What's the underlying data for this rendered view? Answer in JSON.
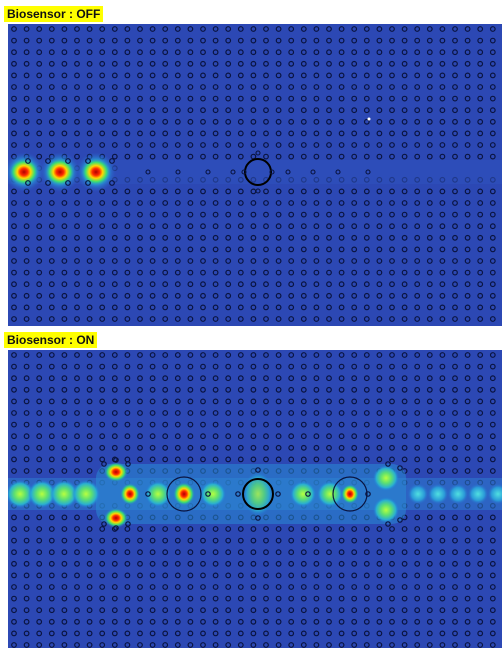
{
  "panels": [
    {
      "label": "Biosensor : OFF",
      "state": "off"
    },
    {
      "label": "Biosensor : ON",
      "state": "on"
    }
  ],
  "colors": {
    "label_bg": "#ffff00",
    "field_background": "#2c48b4",
    "rod_outline": "#0a1440",
    "ring_outline": "#000000"
  }
}
